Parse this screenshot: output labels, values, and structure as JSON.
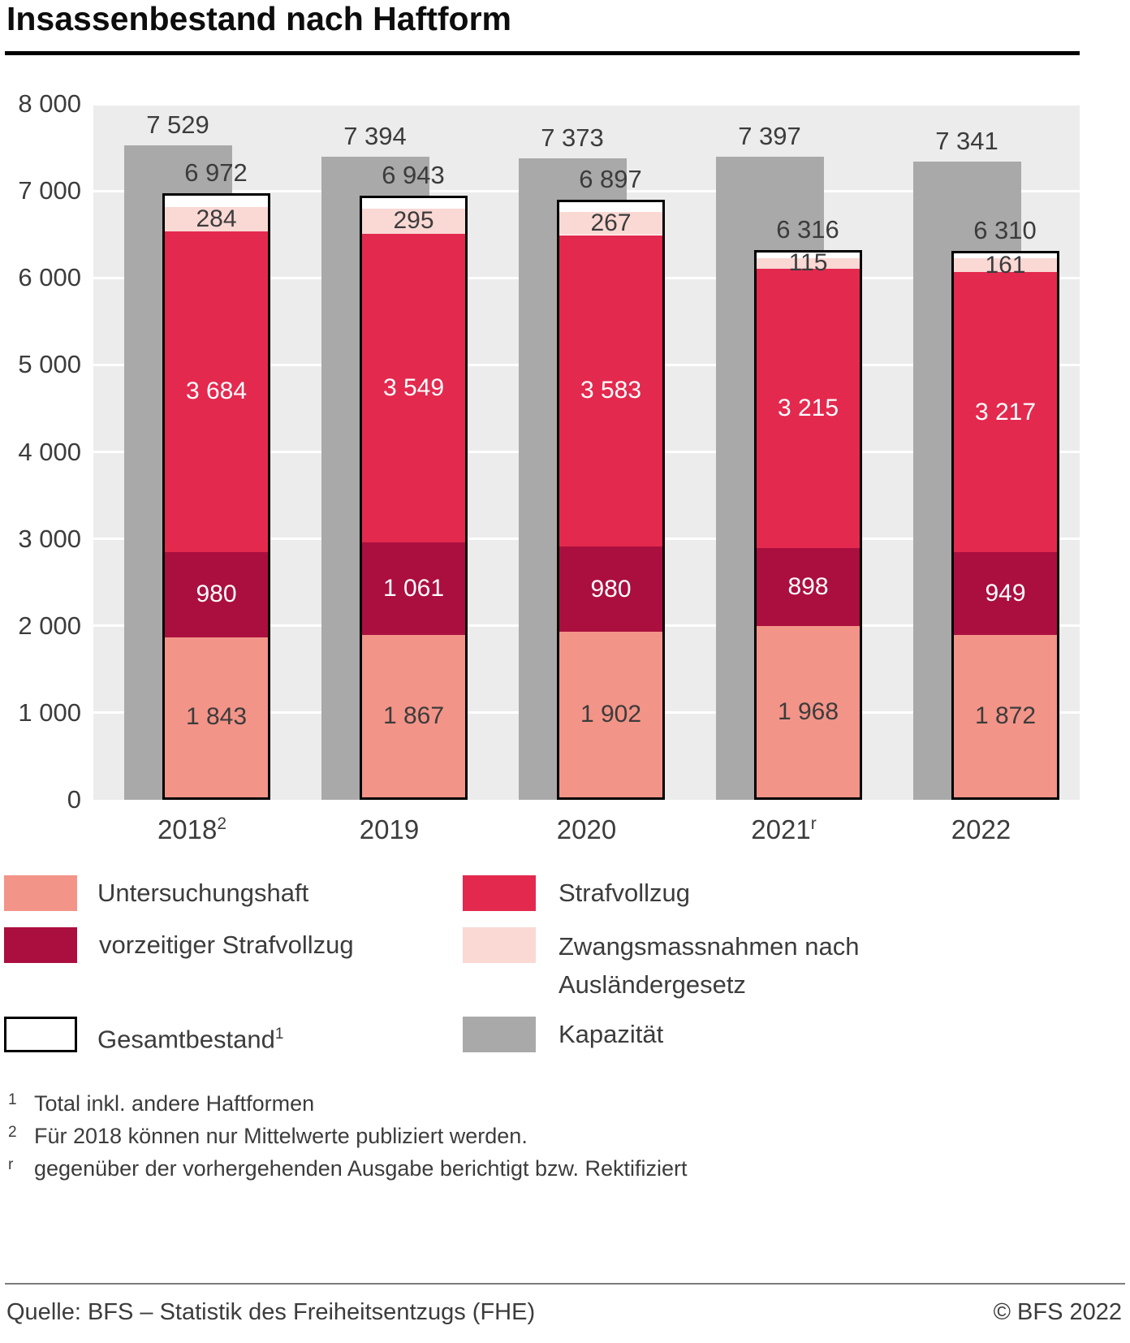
{
  "title": "Insassenbestand nach Haftform",
  "chart_data": {
    "type": "bar",
    "stacked": true,
    "background": "#ececec",
    "gridline_color": "#ffffff",
    "ylim": [
      0,
      8000
    ],
    "ytick_step": 1000,
    "ytick_labels": [
      "0",
      "1 000",
      "2 000",
      "3 000",
      "4 000",
      "5 000",
      "6 000",
      "7 000",
      "8 000"
    ],
    "categories": [
      {
        "label": "2018",
        "sup": "2"
      },
      {
        "label": "2019",
        "sup": ""
      },
      {
        "label": "2020",
        "sup": ""
      },
      {
        "label": "2021",
        "sup": "r"
      },
      {
        "label": "2022",
        "sup": ""
      }
    ],
    "series": [
      {
        "name": "Untersuchungshaft",
        "color": "#f39488",
        "text_color": "#3c3c3c",
        "values": [
          1843,
          1867,
          1902,
          1968,
          1872
        ]
      },
      {
        "name": "vorzeitiger Strafvollzug",
        "color": "#ab0f3f",
        "text_color": "#ffffff",
        "values": [
          980,
          1061,
          980,
          898,
          949
        ]
      },
      {
        "name": "Strafvollzug",
        "color": "#e4294e",
        "text_color": "#ffffff",
        "values": [
          3684,
          3549,
          3583,
          3215,
          3217
        ]
      },
      {
        "name": "Zwangsmassnahmen nach Ausländergesetz",
        "color": "#fad8d4",
        "text_color": "#3c3c3c",
        "values": [
          284,
          295,
          267,
          115,
          161
        ]
      }
    ],
    "total": {
      "name": "Gesamtbestand",
      "values": [
        6972,
        6943,
        6897,
        6316,
        6310
      ],
      "bar_fill": "#ffffff",
      "bar_border": "#000000"
    },
    "capacity": {
      "name": "Kapazität",
      "color": "#a9a9a9",
      "values": [
        7529,
        7394,
        7373,
        7397,
        7341
      ]
    }
  },
  "legend": {
    "untersuchungshaft": "Untersuchungshaft",
    "strafvollzug": "Strafvollzug",
    "vorzeitiger": "vorzeitiger Strafvollzug",
    "zwangsmassnahmen": "Zwangsmassnahmen nach Ausländergesetz",
    "gesamtbestand": "Gesamtbestand",
    "gesamtbestand_sup": "1",
    "kapazitaet": "Kapazität"
  },
  "footnotes": [
    {
      "marker": "1",
      "text": "Total inkl. andere Haftformen"
    },
    {
      "marker": "2",
      "text": "Für 2018 können nur Mittelwerte publiziert werden."
    },
    {
      "marker": "r",
      "text": "gegenüber der vorhergehenden Ausgabe berichtigt bzw. Rektifiziert"
    }
  ],
  "footer": {
    "source": "Quelle: BFS – Statistik des Freiheitsentzugs (FHE)",
    "copyright": "© BFS 2022"
  }
}
